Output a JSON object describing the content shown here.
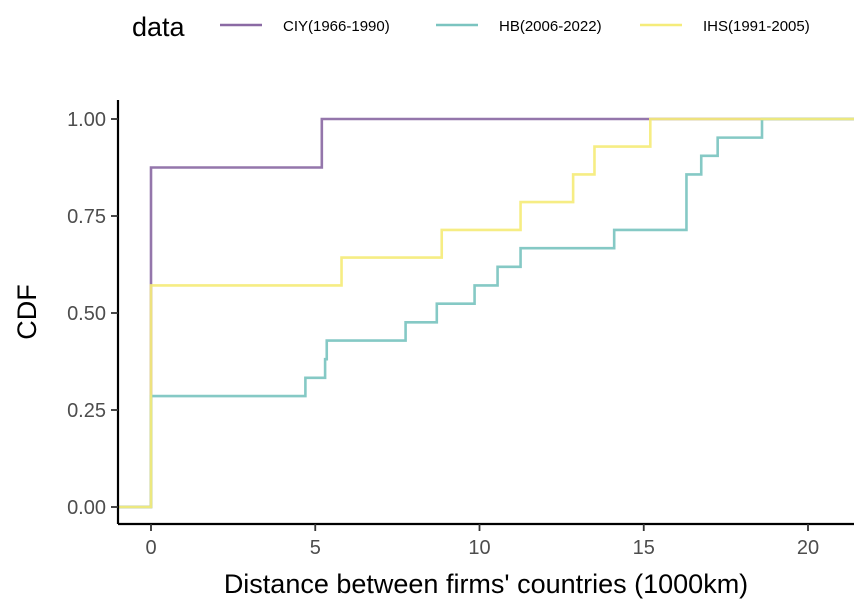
{
  "chart_data": {
    "type": "line",
    "step": true,
    "xlabel": "Distance between firms' countries (1000km)",
    "ylabel": "CDF",
    "xlim": [
      -1,
      21.4
    ],
    "ylim": [
      0,
      1
    ],
    "x_ticks": [
      0,
      5,
      10,
      15,
      20
    ],
    "y_ticks": [
      0,
      0.25,
      0.5,
      0.75,
      1
    ],
    "x_tick_labels": [
      "0",
      "5",
      "10",
      "15",
      "20"
    ],
    "y_tick_labels": [
      "0.00",
      "0.25",
      "0.50",
      "0.75",
      "1.00"
    ],
    "grid": false,
    "legend": {
      "title": "data",
      "position": "top",
      "entries": [
        "CIY(1966-1990)",
        "HB(2006-2022)",
        "IHS(1991-2005)"
      ]
    },
    "series": [
      {
        "name": "CIY(1966-1990)",
        "color": "#8B6AA4",
        "x": [
          0,
          5.2
        ],
        "y": [
          0.875,
          1.0
        ]
      },
      {
        "name": "HB(2006-2022)",
        "color": "#7BC4C0",
        "x": [
          0,
          4.7,
          5.3,
          5.35,
          7.75,
          8.7,
          9.85,
          10.55,
          11.25,
          14.1,
          16.3,
          16.75,
          17.25,
          18.6
        ],
        "y": [
          0.286,
          0.333,
          0.381,
          0.429,
          0.476,
          0.524,
          0.571,
          0.619,
          0.667,
          0.714,
          0.857,
          0.905,
          0.952,
          1.0
        ]
      },
      {
        "name": "IHS(1991-2005)",
        "color": "#F5EC7A",
        "x": [
          0,
          5.8,
          8.85,
          11.25,
          12.85,
          13.5,
          15.2
        ],
        "y": [
          0.571,
          0.643,
          0.714,
          0.786,
          0.857,
          0.929,
          1.0
        ]
      }
    ]
  }
}
